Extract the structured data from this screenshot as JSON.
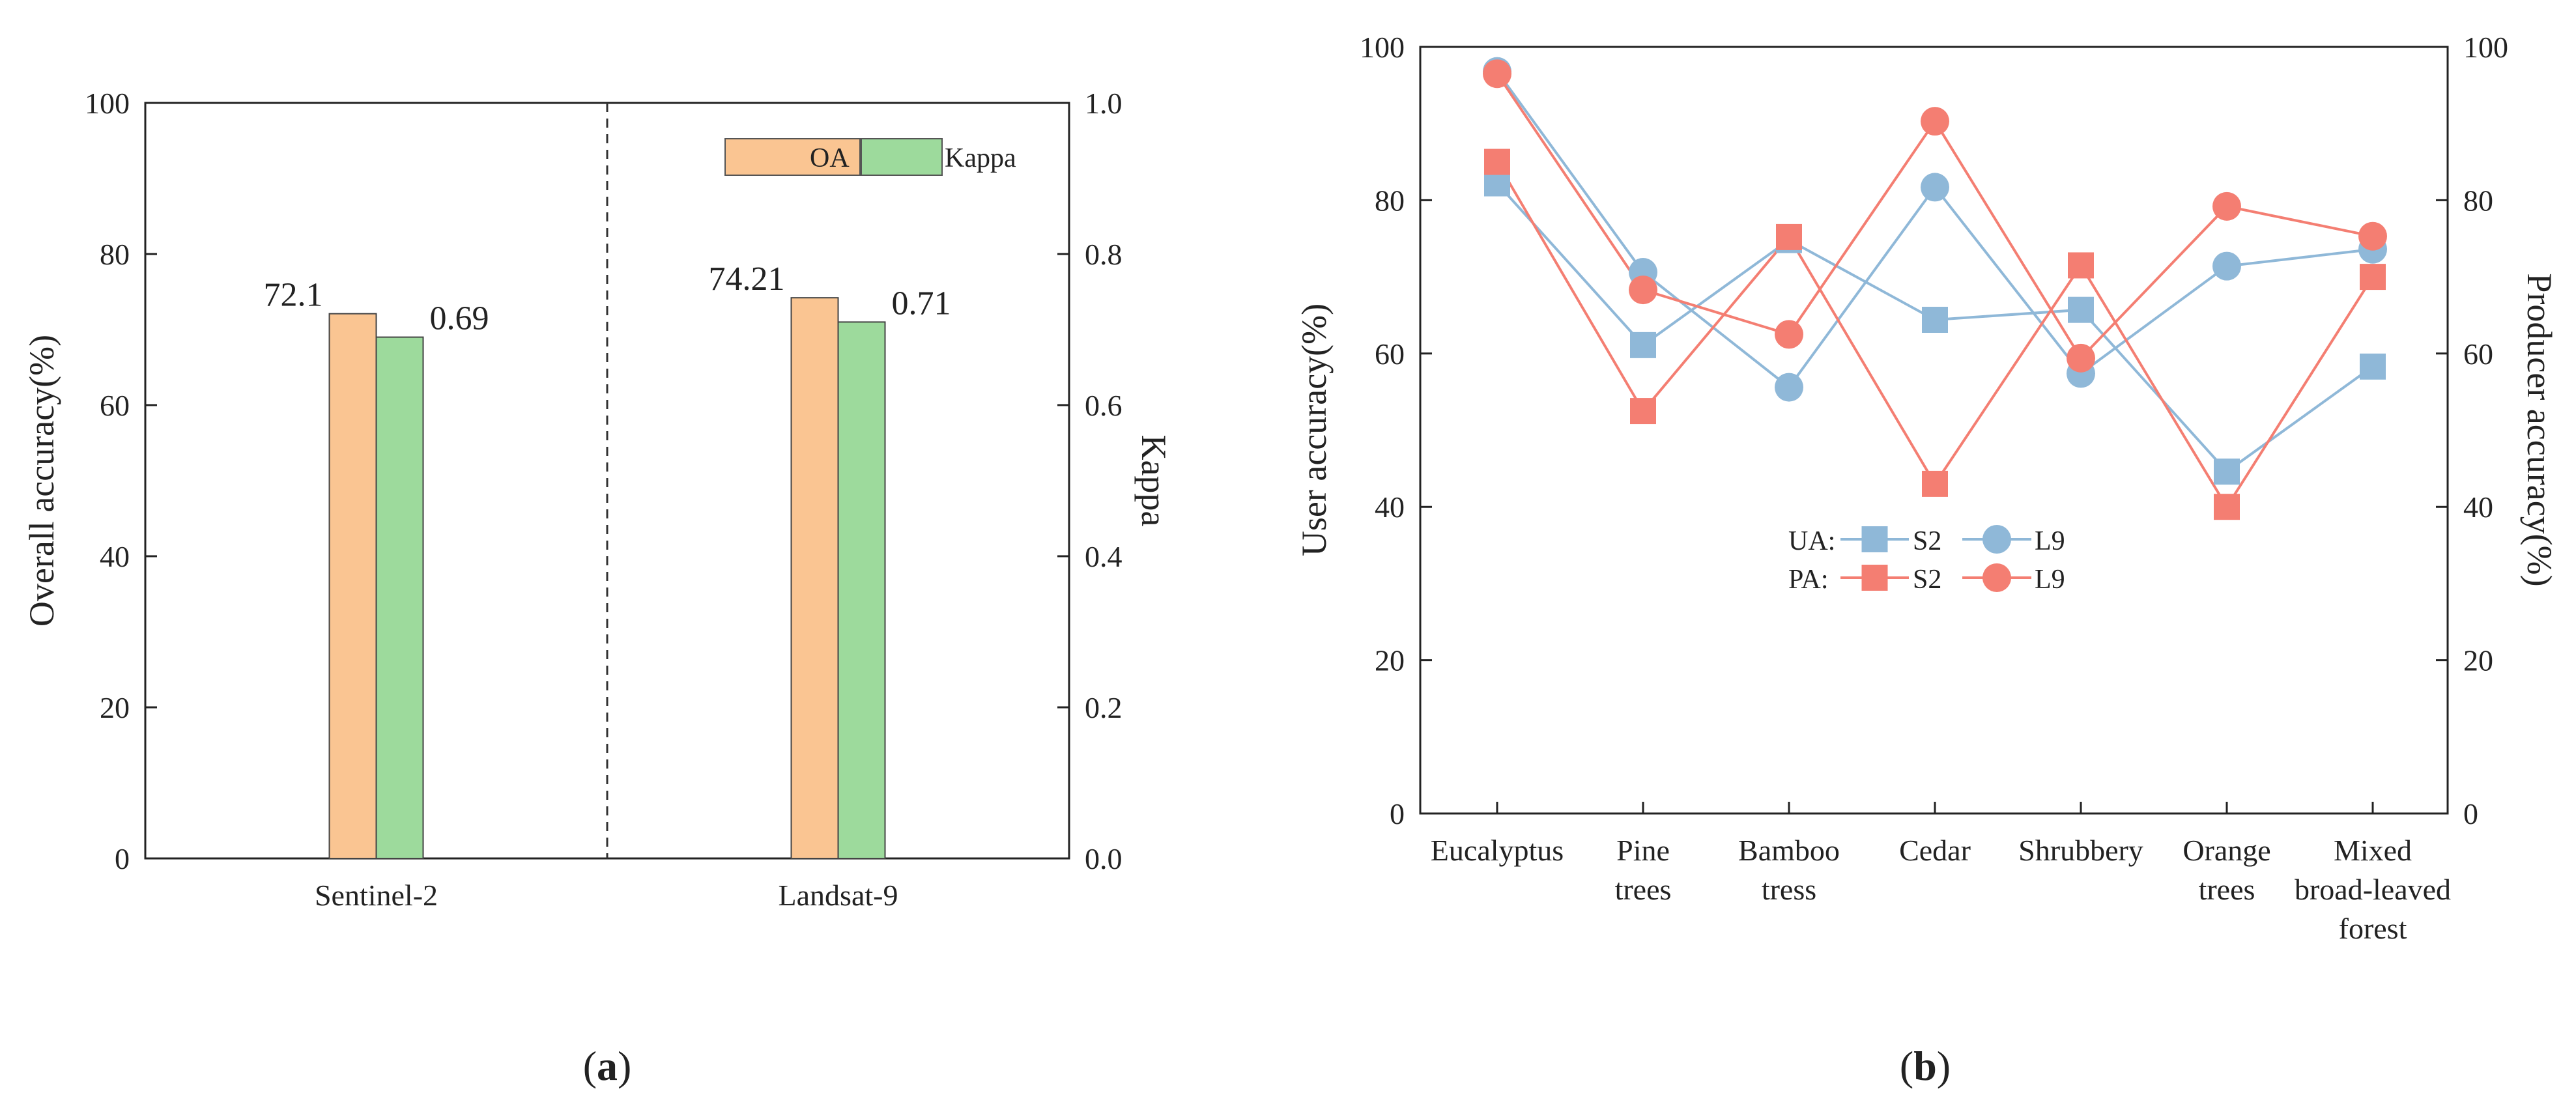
{
  "chart_data": [
    {
      "type": "bar",
      "panel_label": "a",
      "categories": [
        "Sentinel-2",
        "Landsat-9"
      ],
      "series": [
        {
          "name": "OA",
          "axis": "left",
          "values": [
            72.1,
            74.21
          ],
          "labels": [
            "72.1",
            "74.21"
          ],
          "color": "#FAC592"
        },
        {
          "name": "Kappa",
          "axis": "right",
          "values": [
            0.69,
            0.71
          ],
          "labels": [
            "0.69",
            "0.71"
          ],
          "color": "#9DDA9C"
        }
      ],
      "ylabel": "Overall accuracy(%)",
      "ylabel_right": "Kappa",
      "ylim": [
        0,
        100
      ],
      "ylim_right": [
        0,
        1.0
      ],
      "yticks": [
        "0",
        "20",
        "40",
        "60",
        "80",
        "100"
      ],
      "yticks_right": [
        "0.0",
        "0.2",
        "0.4",
        "0.6",
        "0.8",
        "1.0"
      ],
      "grid": false,
      "legend_position": "top-right"
    },
    {
      "type": "line",
      "panel_label": "b",
      "categories": [
        [
          "Eucalyptus"
        ],
        [
          "Pine",
          "trees"
        ],
        [
          "Bamboo",
          "tress"
        ],
        [
          "Cedar"
        ],
        [
          "Shrubbery"
        ],
        [
          "Orange",
          "trees"
        ],
        [
          "Mixed",
          "broad-leaved",
          "forest"
        ]
      ],
      "series": [
        {
          "name": "UA: S2",
          "group": "UA:",
          "short": "S2",
          "marker": "square",
          "color": "#8FB8D8",
          "values": [
            82.2,
            61.1,
            74.8,
            64.4,
            65.7,
            44.6,
            58.3
          ]
        },
        {
          "name": "UA: L9",
          "group": "UA:",
          "short": "L9",
          "marker": "circle",
          "color": "#8FB8D8",
          "values": [
            96.8,
            70.6,
            55.6,
            81.7,
            57.4,
            71.4,
            73.6
          ]
        },
        {
          "name": "PA: S2",
          "group": "PA:",
          "short": "S2",
          "marker": "square",
          "color": "#F47E72",
          "values": [
            85.0,
            52.5,
            75.2,
            43.0,
            71.5,
            40.0,
            70.0
          ]
        },
        {
          "name": "PA: L9",
          "group": "PA:",
          "short": "L9",
          "marker": "circle",
          "color": "#F47E72",
          "values": [
            96.5,
            68.3,
            62.5,
            90.3,
            59.4,
            79.2,
            75.3
          ]
        }
      ],
      "ylabel": "User accuracy(%)",
      "ylabel_right": "Producer accuracy(%)",
      "ylim": [
        0,
        100
      ],
      "yticks": [
        "0",
        "20",
        "40",
        "60",
        "80",
        "100"
      ],
      "yticks_right": [
        "0",
        "20",
        "40",
        "60",
        "80",
        "100"
      ],
      "grid": false,
      "legend_position": "center"
    }
  ]
}
